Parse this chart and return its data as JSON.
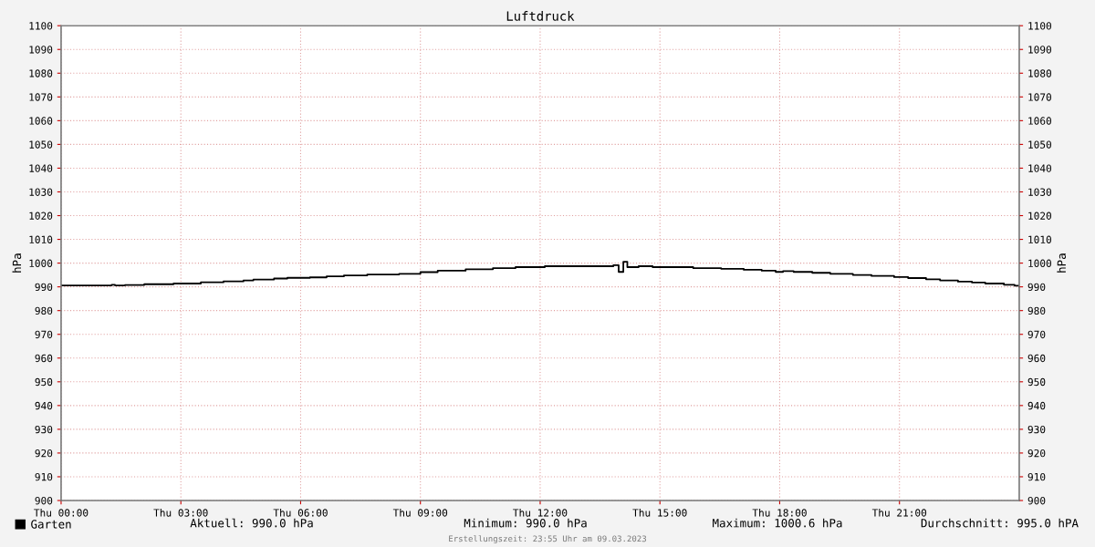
{
  "chart_data": {
    "type": "step",
    "title": "Luftdruck",
    "ylabel": "hPa",
    "y2label": "hPa",
    "x": [
      "2023-03-09T00:00",
      "2023-03-09T01:13",
      "2023-03-09T01:16",
      "2023-03-09T01:20",
      "2023-03-09T01:21",
      "2023-03-09T01:36",
      "2023-03-09T02:05",
      "2023-03-09T02:49",
      "2023-03-09T03:30",
      "2023-03-09T04:04",
      "2023-03-09T04:34",
      "2023-03-09T04:49",
      "2023-03-09T05:20",
      "2023-03-09T05:40",
      "2023-03-09T06:14",
      "2023-03-09T06:39",
      "2023-03-09T07:05",
      "2023-03-09T07:40",
      "2023-03-09T08:28",
      "2023-03-09T09:00",
      "2023-03-09T09:26",
      "2023-03-09T10:08",
      "2023-03-09T10:49",
      "2023-03-09T11:23",
      "2023-03-09T12:07",
      "2023-03-09T13:50",
      "2023-03-09T13:58",
      "2023-03-09T14:02",
      "2023-03-09T14:05",
      "2023-03-09T14:09",
      "2023-03-09T14:11",
      "2023-03-09T14:28",
      "2023-03-09T14:44",
      "2023-03-09T14:49",
      "2023-03-09T15:16",
      "2023-03-09T15:50",
      "2023-03-09T16:32",
      "2023-03-09T17:06",
      "2023-03-09T17:33",
      "2023-03-09T17:54",
      "2023-03-09T18:05",
      "2023-03-09T18:21",
      "2023-03-09T18:49",
      "2023-03-09T19:16",
      "2023-03-09T19:50",
      "2023-03-09T20:18",
      "2023-03-09T20:52",
      "2023-03-09T21:13",
      "2023-03-09T21:40",
      "2023-03-09T22:01",
      "2023-03-09T22:28",
      "2023-03-09T22:49",
      "2023-03-09T23:09",
      "2023-03-09T23:37",
      "2023-03-09T23:53",
      "2023-03-10T00:00"
    ],
    "series": [
      {
        "name": "Garten",
        "color": "#000000",
        "values": [
          990.6,
          990.6,
          990.9,
          990.9,
          990.6,
          990.8,
          991.1,
          991.4,
          991.9,
          992.3,
          992.7,
          993.1,
          993.5,
          993.8,
          994.0,
          994.4,
          994.8,
          995.2,
          995.5,
          996.2,
          996.8,
          997.4,
          997.9,
          998.3,
          998.7,
          999.1,
          996.3,
          996.3,
          1000.6,
          1000.6,
          998.3,
          998.7,
          998.7,
          998.3,
          998.3,
          997.9,
          997.6,
          997.2,
          996.8,
          996.3,
          996.6,
          996.3,
          995.9,
          995.5,
          995.0,
          994.6,
          994.1,
          993.7,
          993.2,
          992.7,
          992.2,
          991.8,
          991.4,
          990.9,
          990.5,
          990.0
        ]
      }
    ],
    "xlim": [
      "2023-03-09T00:00",
      "2023-03-10T00:00"
    ],
    "xticks": [
      {
        "value": "2023-03-09T00:00",
        "label": "Thu 00:00"
      },
      {
        "value": "2023-03-09T03:00",
        "label": "Thu 03:00"
      },
      {
        "value": "2023-03-09T06:00",
        "label": "Thu 06:00"
      },
      {
        "value": "2023-03-09T09:00",
        "label": "Thu 09:00"
      },
      {
        "value": "2023-03-09T12:00",
        "label": "Thu 12:00"
      },
      {
        "value": "2023-03-09T15:00",
        "label": "Thu 15:00"
      },
      {
        "value": "2023-03-09T18:00",
        "label": "Thu 18:00"
      },
      {
        "value": "2023-03-09T21:00",
        "label": "Thu 21:00"
      }
    ],
    "ylim": [
      900,
      1100
    ],
    "yticks": [
      900,
      910,
      920,
      930,
      940,
      950,
      960,
      970,
      980,
      990,
      1000,
      1010,
      1020,
      1030,
      1040,
      1050,
      1060,
      1070,
      1080,
      1090,
      1100
    ],
    "y2lim": [
      900,
      1100
    ],
    "y2ticks": [
      900,
      910,
      920,
      930,
      940,
      950,
      960,
      970,
      980,
      990,
      1000,
      1010,
      1020,
      1030,
      1040,
      1050,
      1060,
      1070,
      1080,
      1090,
      1100
    ],
    "grid": true,
    "legend": "bottom left",
    "marker": "none",
    "line_style": "solid",
    "annotations": [
      "Aktuell: 990.0 hPa",
      "Minimum: 990.0 hPa",
      "Maximum: 1000.6 hPa",
      "Durchschnitt: 995.0 hPA",
      "Erstellungszeit: 23:55 Uhr am 09.03.2023"
    ]
  }
}
